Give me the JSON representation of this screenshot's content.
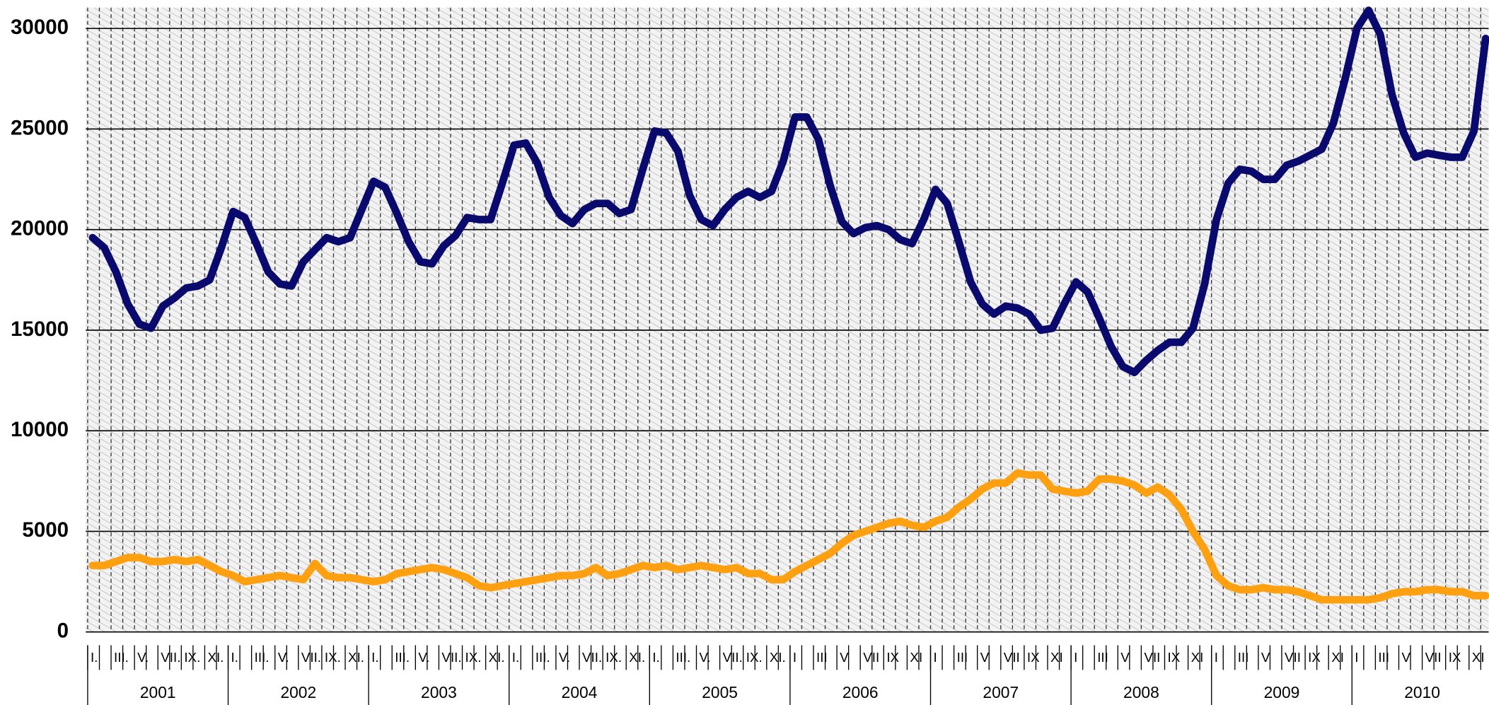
{
  "chart_data": {
    "type": "line",
    "categories": [
      "I.",
      null,
      "III.",
      null,
      "V.",
      null,
      "VII.",
      null,
      "IX.",
      null,
      "XI.",
      null,
      "I.",
      null,
      "III.",
      null,
      "V.",
      null,
      "VII.",
      null,
      "IX.",
      null,
      "XI.",
      null,
      "I.",
      null,
      "III.",
      null,
      "V.",
      null,
      "VII.",
      null,
      "IX.",
      null,
      "XI.",
      null,
      "I.",
      null,
      "III.",
      null,
      "V.",
      null,
      "VII.",
      null,
      "IX.",
      null,
      "XI.",
      null,
      "I.",
      null,
      "III.",
      null,
      "V.",
      null,
      "VII.",
      null,
      "IX.",
      null,
      "XI.",
      null,
      "I",
      null,
      "III",
      null,
      "V",
      null,
      "VII",
      null,
      "IX",
      null,
      "XI",
      null,
      "I",
      null,
      "III",
      null,
      "V",
      null,
      "VII",
      null,
      "IX",
      null,
      "XI",
      null,
      "I",
      null,
      "III",
      null,
      "V",
      null,
      "VII",
      null,
      "IX",
      null,
      "XI",
      null,
      "I",
      null,
      "III",
      null,
      "V",
      null,
      "VII",
      null,
      "IX",
      null,
      "XI",
      null,
      "I",
      null,
      "III",
      null,
      "V",
      null,
      "VII",
      null,
      "IX",
      null,
      "XI",
      null
    ],
    "year_labels": [
      "2001",
      "2002",
      "2003",
      "2004",
      "2005",
      "2006",
      "2007",
      "2008",
      "2009",
      "2010"
    ],
    "series": [
      {
        "color": "#0a0a6e",
        "values": [
          19600,
          19100,
          17900,
          16300,
          15300,
          15100,
          16200,
          16600,
          17100,
          17200,
          17500,
          19100,
          20900,
          20600,
          19300,
          17900,
          17300,
          17200,
          18400,
          19000,
          19600,
          19400,
          19600,
          21000,
          22400,
          22100,
          20800,
          19400,
          18400,
          18300,
          19200,
          19700,
          20600,
          20500,
          20500,
          22300,
          24200,
          24300,
          23300,
          21600,
          20700,
          20300,
          21000,
          21300,
          21300,
          20800,
          21000,
          23000,
          24900,
          24800,
          23900,
          21700,
          20500,
          20200,
          21000,
          21600,
          21900,
          21600,
          21900,
          23400,
          25600,
          25600,
          24500,
          22200,
          20400,
          19800,
          20100,
          20200,
          20000,
          19500,
          19300,
          20500,
          22000,
          21300,
          19400,
          17400,
          16300,
          15800,
          16200,
          16100,
          15800,
          15000,
          15100,
          16300,
          17400,
          16900,
          15600,
          14200,
          13200,
          12900,
          13500,
          14000,
          14400,
          14400,
          15100,
          17300,
          20500,
          22300,
          23000,
          22900,
          22500,
          22500,
          23200,
          23400,
          23700,
          24000,
          25300,
          27500,
          30000,
          30900,
          29700,
          26700,
          24800,
          23600,
          23800,
          23700,
          23600,
          23600,
          24900,
          29500
        ]
      },
      {
        "color": "#ffa010",
        "values": [
          3300,
          3300,
          3500,
          3700,
          3700,
          3500,
          3500,
          3600,
          3500,
          3600,
          3300,
          3000,
          2800,
          2500,
          2600,
          2700,
          2800,
          2700,
          2600,
          3400,
          2800,
          2700,
          2700,
          2600,
          2500,
          2600,
          2900,
          3000,
          3100,
          3200,
          3100,
          2900,
          2700,
          2300,
          2200,
          2300,
          2400,
          2500,
          2600,
          2700,
          2800,
          2800,
          2900,
          3200,
          2800,
          2900,
          3100,
          3300,
          3200,
          3300,
          3100,
          3200,
          3300,
          3200,
          3100,
          3200,
          2900,
          2900,
          2600,
          2600,
          3000,
          3300,
          3600,
          3900,
          4400,
          4800,
          5000,
          5200,
          5400,
          5500,
          5300,
          5200,
          5500,
          5700,
          6200,
          6600,
          7100,
          7400,
          7400,
          7900,
          7800,
          7800,
          7100,
          7000,
          6900,
          7000,
          7600,
          7600,
          7500,
          7300,
          6900,
          7200,
          6800,
          6100,
          5000,
          4100,
          2800,
          2300,
          2100,
          2100,
          2200,
          2100,
          2100,
          2000,
          1800,
          1600,
          1600,
          1600,
          1600,
          1600,
          1700,
          1900,
          2000,
          2000,
          2100,
          2100,
          2000,
          2000,
          1800,
          1800
        ]
      }
    ],
    "ylim": [
      0,
      30000
    ],
    "yticks": [
      0,
      5000,
      10000,
      15000,
      20000,
      25000,
      30000
    ],
    "grid": true
  }
}
